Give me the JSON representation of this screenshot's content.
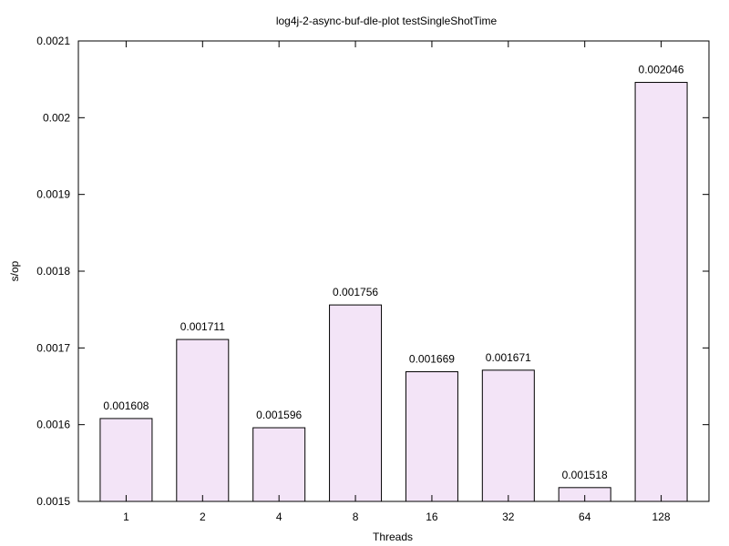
{
  "chart_data": {
    "type": "bar",
    "title": "log4j-2-async-buf-dle-plot testSingleShotTime",
    "xlabel": "Threads",
    "ylabel": "s/op",
    "categories": [
      "1",
      "2",
      "4",
      "8",
      "16",
      "32",
      "64",
      "128"
    ],
    "values": [
      0.001608,
      0.001711,
      0.001596,
      0.001756,
      0.001669,
      0.001671,
      0.001518,
      0.002046
    ],
    "data_labels": [
      "0.001608",
      "0.001711",
      "0.001596",
      "0.001756",
      "0.001669",
      "0.001671",
      "0.001518",
      "0.002046"
    ],
    "ylim": [
      0.0015,
      0.0021
    ],
    "yticks": [
      "0.0015",
      "0.0016",
      "0.0017",
      "0.0018",
      "0.0019",
      "0.002",
      "0.0021"
    ],
    "grid": false,
    "colors": {
      "bar_fill": "#f3e4f7",
      "bar_stroke": "#000000"
    }
  }
}
